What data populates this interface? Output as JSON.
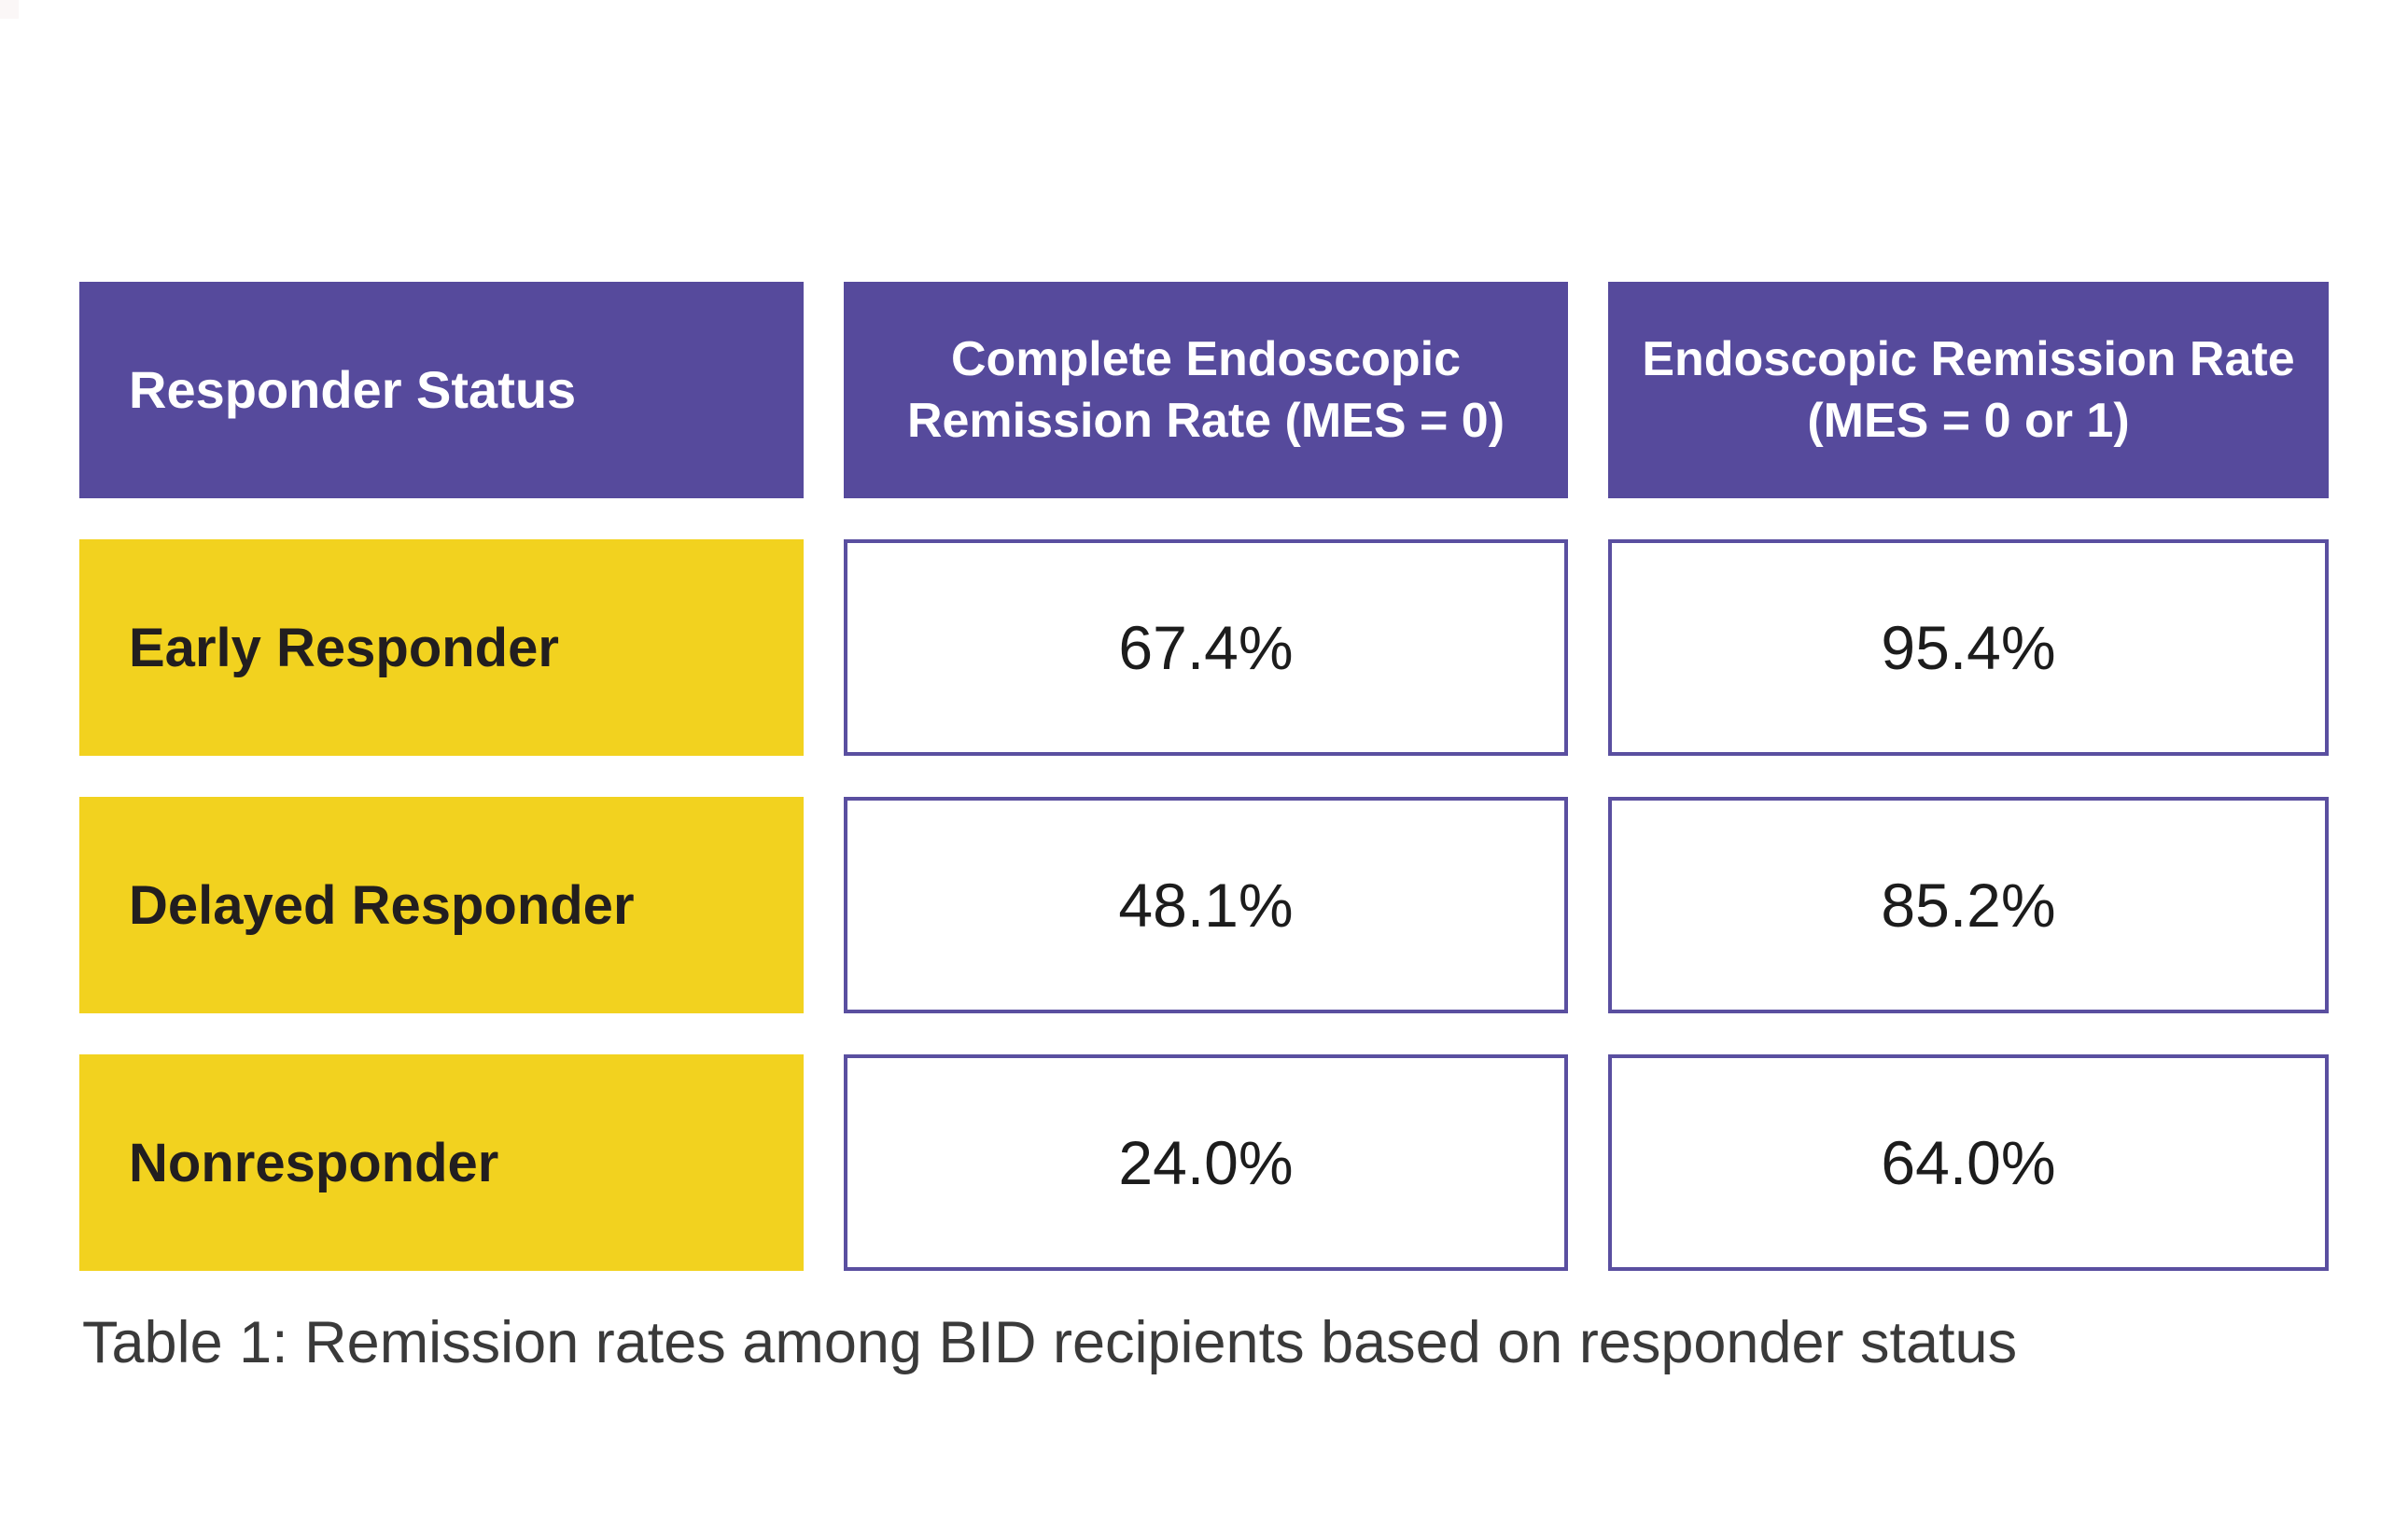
{
  "table": {
    "caption": "Table 1: Remission rates among BID recipients based on responder status",
    "columns": [
      "Responder Status",
      "Complete Endoscopic Remission Rate (MES = 0)",
      "Endoscopic Remission Rate (MES = 0 or 1)"
    ],
    "rows": [
      {
        "label": "Early Responder",
        "complete_remission_rate": "67.4%",
        "remission_rate": "95.4%"
      },
      {
        "label": "Delayed Responder",
        "complete_remission_rate": "48.1%",
        "remission_rate": "85.2%"
      },
      {
        "label": "Nonresponder",
        "complete_remission_rate": "24.0%",
        "remission_rate": "64.0%"
      }
    ],
    "colors": {
      "header_bg": "#564a9c",
      "header_text": "#ffffff",
      "row_label_bg": "#f2d21f",
      "row_label_text": "#221e1f",
      "cell_bg": "#ffffff",
      "cell_border": "#5a4fa0",
      "value_text": "#1c1c1c",
      "caption_text": "#3a3a3a"
    }
  },
  "chart_data": {
    "type": "table",
    "title": "Table 1: Remission rates among BID recipients based on responder status",
    "columns": [
      "Responder Status",
      "Complete Endoscopic Remission Rate (MES = 0)",
      "Endoscopic Remission Rate (MES = 0 or 1)"
    ],
    "units": "percent",
    "rows": [
      {
        "responder_status": "Early Responder",
        "complete_endoscopic_remission_rate_mes_0": 67.4,
        "endoscopic_remission_rate_mes_0_or_1": 95.4
      },
      {
        "responder_status": "Delayed Responder",
        "complete_endoscopic_remission_rate_mes_0": 48.1,
        "endoscopic_remission_rate_mes_0_or_1": 85.2
      },
      {
        "responder_status": "Nonresponder",
        "complete_endoscopic_remission_rate_mes_0": 24.0,
        "endoscopic_remission_rate_mes_0_or_1": 64.0
      }
    ]
  }
}
